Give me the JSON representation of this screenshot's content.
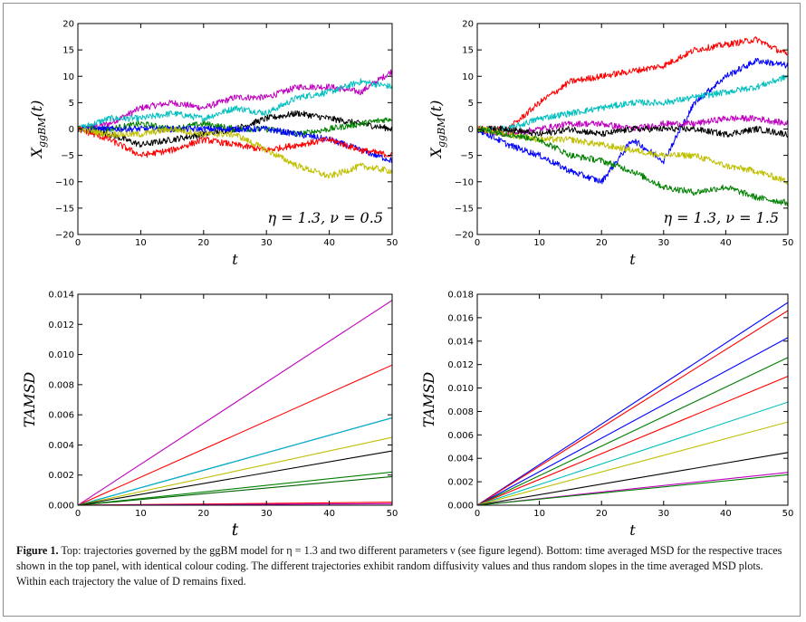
{
  "chart_data": [
    {
      "type": "line",
      "id": "top-left",
      "xlabel": "t",
      "ylabel": "X_{ggBM}(t)",
      "xlim": [
        0,
        50
      ],
      "ylim": [
        -20,
        20
      ],
      "xticks": [
        0,
        10,
        20,
        30,
        40,
        50
      ],
      "yticks": [
        -20,
        -15,
        -10,
        -5,
        0,
        5,
        10,
        15,
        20
      ],
      "annotation": "η = 1.3,  ν = 0.5",
      "annotation_position": "bottom-right",
      "grid": false,
      "series": [
        {
          "color": "#bf00bf",
          "x": [
            0,
            5,
            10,
            15,
            20,
            25,
            30,
            35,
            40,
            45,
            50
          ],
          "values": [
            0,
            1,
            4,
            5,
            4,
            6,
            6,
            8,
            8,
            7,
            11
          ]
        },
        {
          "color": "#00bfbf",
          "x": [
            0,
            5,
            10,
            15,
            20,
            25,
            30,
            35,
            40,
            45,
            50
          ],
          "values": [
            0,
            2,
            2,
            3,
            2,
            4,
            3,
            6,
            7,
            9,
            8
          ]
        },
        {
          "color": "#000000",
          "x": [
            0,
            5,
            10,
            15,
            20,
            25,
            30,
            35,
            40,
            45,
            50
          ],
          "values": [
            0,
            -1,
            -3,
            -2,
            -1,
            0,
            2,
            3,
            2,
            1,
            0
          ]
        },
        {
          "color": "#008000",
          "x": [
            0,
            5,
            10,
            15,
            20,
            25,
            30,
            35,
            40,
            45,
            50
          ],
          "values": [
            0,
            0,
            1,
            0,
            1,
            0,
            0,
            -1,
            0,
            1,
            2
          ]
        },
        {
          "color": "#0000ff",
          "x": [
            0,
            5,
            10,
            15,
            20,
            25,
            30,
            35,
            40,
            45,
            50
          ],
          "values": [
            0,
            0,
            0,
            0,
            0,
            0,
            0,
            -1,
            -2,
            -4,
            -6
          ]
        },
        {
          "color": "#ff0000",
          "x": [
            0,
            5,
            10,
            15,
            20,
            25,
            30,
            35,
            40,
            45,
            50
          ],
          "values": [
            0,
            -2,
            -5,
            -4,
            -2,
            -3,
            -4,
            -3,
            -2,
            -4,
            -5
          ]
        },
        {
          "color": "#bfbf00",
          "x": [
            0,
            5,
            10,
            15,
            20,
            25,
            30,
            35,
            40,
            45,
            50
          ],
          "values": [
            0,
            -1,
            -1,
            0,
            -1,
            -1,
            -4,
            -7,
            -9,
            -7,
            -8
          ]
        }
      ]
    },
    {
      "type": "line",
      "id": "top-right",
      "xlabel": "t",
      "ylabel": "X_{ggBM}(t)",
      "xlim": [
        0,
        50
      ],
      "ylim": [
        -20,
        20
      ],
      "xticks": [
        0,
        10,
        20,
        30,
        40,
        50
      ],
      "yticks": [
        -20,
        -15,
        -10,
        -5,
        0,
        5,
        10,
        15,
        20
      ],
      "annotation": "η = 1.3,  ν = 1.5",
      "annotation_position": "bottom-right",
      "grid": false,
      "series": [
        {
          "color": "#ff0000",
          "x": [
            0,
            5,
            10,
            15,
            20,
            25,
            30,
            35,
            40,
            45,
            50
          ],
          "values": [
            0,
            0,
            5,
            9,
            10,
            11,
            12,
            15,
            16,
            17,
            14
          ]
        },
        {
          "color": "#0000ff",
          "x": [
            0,
            5,
            10,
            15,
            20,
            25,
            30,
            35,
            40,
            45,
            50
          ],
          "values": [
            0,
            -3,
            -5,
            -8,
            -10,
            -2,
            -6,
            5,
            10,
            13,
            12
          ]
        },
        {
          "color": "#00bfbf",
          "x": [
            0,
            5,
            10,
            15,
            20,
            25,
            30,
            35,
            40,
            45,
            50
          ],
          "values": [
            0,
            0,
            2,
            3,
            4,
            5,
            5,
            6,
            7,
            8,
            10
          ]
        },
        {
          "color": "#bf00bf",
          "x": [
            0,
            5,
            10,
            15,
            20,
            25,
            30,
            35,
            40,
            45,
            50
          ],
          "values": [
            0,
            -1,
            0,
            1,
            1,
            0,
            1,
            1,
            2,
            2,
            1
          ]
        },
        {
          "color": "#000000",
          "x": [
            0,
            5,
            10,
            15,
            20,
            25,
            30,
            35,
            40,
            45,
            50
          ],
          "values": [
            0,
            0,
            -1,
            0,
            -1,
            0,
            0,
            0,
            -1,
            0,
            -1
          ]
        },
        {
          "color": "#bfbf00",
          "x": [
            0,
            5,
            10,
            15,
            20,
            25,
            30,
            35,
            40,
            45,
            50
          ],
          "values": [
            0,
            -1,
            -2,
            -2,
            -3,
            -4,
            -5,
            -5,
            -7,
            -8,
            -10
          ]
        },
        {
          "color": "#008000",
          "x": [
            0,
            5,
            10,
            15,
            20,
            25,
            30,
            35,
            40,
            45,
            50
          ],
          "values": [
            0,
            -1,
            -2,
            -5,
            -6,
            -8,
            -11,
            -12,
            -11,
            -13,
            -14
          ]
        }
      ]
    },
    {
      "type": "line",
      "id": "bottom-left",
      "xlabel": "t",
      "ylabel": "TAMSD",
      "xlim": [
        0,
        50
      ],
      "ylim": [
        0,
        0.014
      ],
      "xticks": [
        0,
        10,
        20,
        30,
        40,
        50
      ],
      "yticks": [
        "0.000",
        "0.002",
        "0.004",
        "0.006",
        "0.008",
        "0.010",
        "0.012",
        "0.014"
      ],
      "grid": false,
      "series": [
        {
          "color": "#bf00bf",
          "x": [
            0,
            50
          ],
          "values": [
            0,
            0.0136
          ]
        },
        {
          "color": "#ff0000",
          "x": [
            0,
            50
          ],
          "values": [
            0,
            0.0093
          ]
        },
        {
          "color": "#0000ff",
          "x": [
            0,
            50
          ],
          "values": [
            0,
            0.0058
          ]
        },
        {
          "color": "#00bfbf",
          "x": [
            0,
            50
          ],
          "values": [
            0,
            0.0058
          ]
        },
        {
          "color": "#bfbf00",
          "x": [
            0,
            50
          ],
          "values": [
            0,
            0.0045
          ]
        },
        {
          "color": "#000000",
          "x": [
            0,
            50
          ],
          "values": [
            0,
            0.0036
          ]
        },
        {
          "color": "#008000",
          "x": [
            0,
            50
          ],
          "values": [
            0,
            0.0022
          ]
        },
        {
          "color": "#006400",
          "x": [
            0,
            50
          ],
          "values": [
            0,
            0.0019
          ]
        },
        {
          "color": "#ff0000",
          "x": [
            0,
            50
          ],
          "values": [
            0,
            0.0002
          ]
        },
        {
          "color": "#bf00bf",
          "x": [
            0,
            50
          ],
          "values": [
            0,
            0.0001
          ]
        }
      ]
    },
    {
      "type": "line",
      "id": "bottom-right",
      "xlabel": "t",
      "ylabel": "TAMSD",
      "xlim": [
        0,
        50
      ],
      "ylim": [
        0,
        0.018
      ],
      "xticks": [
        0,
        10,
        20,
        30,
        40,
        50
      ],
      "yticks": [
        "0.000",
        "0.002",
        "0.004",
        "0.006",
        "0.008",
        "0.010",
        "0.012",
        "0.014",
        "0.016",
        "0.018"
      ],
      "grid": false,
      "series": [
        {
          "color": "#0000ff",
          "x": [
            0,
            50
          ],
          "values": [
            0,
            0.0173
          ]
        },
        {
          "color": "#ff0000",
          "x": [
            0,
            50
          ],
          "values": [
            0,
            0.0166
          ]
        },
        {
          "color": "#0000ff",
          "x": [
            0,
            50
          ],
          "values": [
            0,
            0.0143
          ]
        },
        {
          "color": "#008000",
          "x": [
            0,
            50
          ],
          "values": [
            0,
            0.0126
          ]
        },
        {
          "color": "#ff0000",
          "x": [
            0,
            50
          ],
          "values": [
            0,
            0.011
          ]
        },
        {
          "color": "#00bfbf",
          "x": [
            0,
            50
          ],
          "values": [
            0,
            0.0088
          ]
        },
        {
          "color": "#bfbf00",
          "x": [
            0,
            50
          ],
          "values": [
            0,
            0.0071
          ]
        },
        {
          "color": "#000000",
          "x": [
            0,
            50
          ],
          "values": [
            0,
            0.0045
          ]
        },
        {
          "color": "#bf00bf",
          "x": [
            0,
            50
          ],
          "values": [
            0,
            0.0028
          ]
        },
        {
          "color": "#008000",
          "x": [
            0,
            50
          ],
          "values": [
            0,
            0.0026
          ]
        }
      ]
    }
  ],
  "caption": {
    "label": "Figure 1.",
    "text": " Top: trajectories governed by the ggBM model for η = 1.3 and two different parameters ν (see figure legend). Bottom: time averaged MSD for the respective traces shown in the top panel, with identical colour coding. The different trajectories exhibit random diffusivity values and thus random slopes in the time averaged MSD plots. Within each trajectory the value of D remains fixed."
  }
}
